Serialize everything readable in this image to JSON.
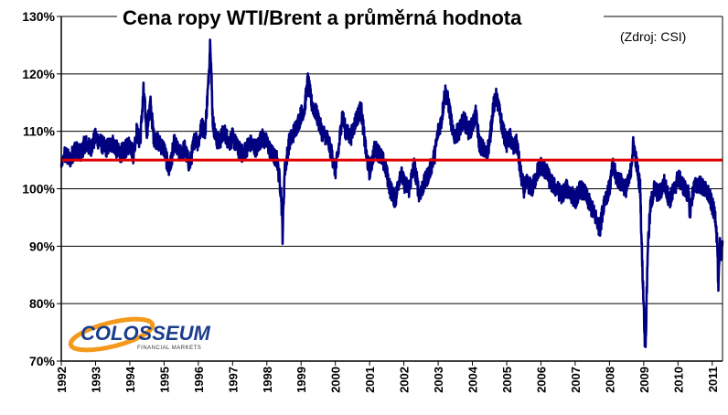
{
  "chart_data": {
    "type": "line",
    "title": "Cena ropy WTI/Brent a průměrná hodnota",
    "source": "(Zdroj: CSI)",
    "xlabel": "",
    "ylabel": "",
    "xlim": [
      1992,
      2011.3
    ],
    "ylim": [
      70,
      130
    ],
    "grid": true,
    "y_ticks": [
      "70%",
      "80%",
      "90%",
      "100%",
      "110%",
      "120%",
      "130%"
    ],
    "x_ticks": [
      "1992",
      "1993",
      "1994",
      "1995",
      "1996",
      "1997",
      "1998",
      "1999",
      "2000",
      "2001",
      "2002",
      "2003",
      "2004",
      "2005",
      "2006",
      "2007",
      "2008",
      "2009",
      "2010",
      "2011"
    ],
    "colors": {
      "series": "#000080",
      "average": "#e00000",
      "grid": "#000000"
    },
    "series": [
      {
        "values": [
          [
            1992.0,
            104
          ],
          [
            1992.1,
            106
          ],
          [
            1992.25,
            105
          ],
          [
            1992.4,
            107
          ],
          [
            1992.55,
            106
          ],
          [
            1992.7,
            108
          ],
          [
            1992.85,
            107
          ],
          [
            1993.0,
            109
          ],
          [
            1993.15,
            108
          ],
          [
            1993.3,
            107
          ],
          [
            1993.5,
            108
          ],
          [
            1993.7,
            106
          ],
          [
            1993.9,
            107
          ],
          [
            1994.0,
            108
          ],
          [
            1994.1,
            106
          ],
          [
            1994.2,
            110
          ],
          [
            1994.3,
            108
          ],
          [
            1994.4,
            117
          ],
          [
            1994.5,
            110
          ],
          [
            1994.6,
            115
          ],
          [
            1994.7,
            109
          ],
          [
            1994.85,
            108
          ],
          [
            1995.0,
            107
          ],
          [
            1995.15,
            103
          ],
          [
            1995.3,
            108
          ],
          [
            1995.45,
            106
          ],
          [
            1995.6,
            107
          ],
          [
            1995.75,
            104
          ],
          [
            1995.9,
            109
          ],
          [
            1996.0,
            108
          ],
          [
            1996.1,
            111
          ],
          [
            1996.2,
            110
          ],
          [
            1996.3,
            119
          ],
          [
            1996.35,
            126
          ],
          [
            1996.42,
            112
          ],
          [
            1996.5,
            109
          ],
          [
            1996.6,
            108
          ],
          [
            1996.75,
            110
          ],
          [
            1996.9,
            108
          ],
          [
            1997.0,
            109
          ],
          [
            1997.15,
            107
          ],
          [
            1997.3,
            106
          ],
          [
            1997.5,
            108
          ],
          [
            1997.7,
            107
          ],
          [
            1997.85,
            109
          ],
          [
            1998.0,
            108
          ],
          [
            1998.15,
            106
          ],
          [
            1998.3,
            105
          ],
          [
            1998.42,
            99
          ],
          [
            1998.46,
            92
          ],
          [
            1998.52,
            103
          ],
          [
            1998.65,
            108
          ],
          [
            1998.8,
            110
          ],
          [
            1998.95,
            112
          ],
          [
            1999.0,
            113
          ],
          [
            1999.1,
            114
          ],
          [
            1999.2,
            119
          ],
          [
            1999.3,
            115
          ],
          [
            1999.45,
            113
          ],
          [
            1999.6,
            110
          ],
          [
            1999.75,
            109
          ],
          [
            1999.9,
            106
          ],
          [
            2000.0,
            103
          ],
          [
            2000.1,
            107
          ],
          [
            2000.2,
            113
          ],
          [
            2000.3,
            110
          ],
          [
            2000.45,
            109
          ],
          [
            2000.6,
            112
          ],
          [
            2000.75,
            114
          ],
          [
            2000.9,
            106
          ],
          [
            2001.0,
            103
          ],
          [
            2001.15,
            107
          ],
          [
            2001.3,
            106
          ],
          [
            2001.45,
            104
          ],
          [
            2001.6,
            100
          ],
          [
            2001.75,
            98
          ],
          [
            2001.9,
            103
          ],
          [
            2002.0,
            101
          ],
          [
            2002.15,
            100
          ],
          [
            2002.3,
            104
          ],
          [
            2002.45,
            99
          ],
          [
            2002.6,
            101
          ],
          [
            2002.75,
            103
          ],
          [
            2002.9,
            106
          ],
          [
            2003.0,
            110
          ],
          [
            2003.1,
            112
          ],
          [
            2003.2,
            117
          ],
          [
            2003.3,
            115
          ],
          [
            2003.45,
            109
          ],
          [
            2003.6,
            110
          ],
          [
            2003.75,
            112
          ],
          [
            2003.9,
            110
          ],
          [
            2004.0,
            111
          ],
          [
            2004.1,
            113
          ],
          [
            2004.2,
            108
          ],
          [
            2004.3,
            107
          ],
          [
            2004.4,
            106
          ],
          [
            2004.5,
            108
          ],
          [
            2004.6,
            114
          ],
          [
            2004.7,
            116
          ],
          [
            2004.8,
            113
          ],
          [
            2004.9,
            110
          ],
          [
            2005.0,
            108
          ],
          [
            2005.1,
            109
          ],
          [
            2005.2,
            107
          ],
          [
            2005.3,
            108
          ],
          [
            2005.4,
            103
          ],
          [
            2005.5,
            100
          ],
          [
            2005.6,
            101
          ],
          [
            2005.75,
            100
          ],
          [
            2005.9,
            103
          ],
          [
            2006.0,
            104
          ],
          [
            2006.15,
            103
          ],
          [
            2006.3,
            101
          ],
          [
            2006.45,
            100
          ],
          [
            2006.6,
            99
          ],
          [
            2006.75,
            100
          ],
          [
            2006.9,
            99
          ],
          [
            2007.0,
            98
          ],
          [
            2007.15,
            100
          ],
          [
            2007.3,
            99
          ],
          [
            2007.45,
            97
          ],
          [
            2007.6,
            95
          ],
          [
            2007.72,
            93
          ],
          [
            2007.85,
            98
          ],
          [
            2008.0,
            100
          ],
          [
            2008.1,
            104
          ],
          [
            2008.2,
            102
          ],
          [
            2008.35,
            101
          ],
          [
            2008.5,
            100
          ],
          [
            2008.6,
            102
          ],
          [
            2008.7,
            108
          ],
          [
            2008.8,
            104
          ],
          [
            2008.9,
            100
          ],
          [
            2008.95,
            88
          ],
          [
            2009.0,
            80
          ],
          [
            2009.03,
            74
          ],
          [
            2009.06,
            74
          ],
          [
            2009.12,
            90
          ],
          [
            2009.2,
            97
          ],
          [
            2009.3,
            100
          ],
          [
            2009.45,
            99
          ],
          [
            2009.6,
            101
          ],
          [
            2009.75,
            98
          ],
          [
            2009.9,
            100
          ],
          [
            2010.0,
            102
          ],
          [
            2010.1,
            101
          ],
          [
            2010.2,
            100
          ],
          [
            2010.3,
            99
          ],
          [
            2010.35,
            96
          ],
          [
            2010.45,
            100
          ],
          [
            2010.6,
            101
          ],
          [
            2010.75,
            100
          ],
          [
            2010.9,
            99
          ],
          [
            2011.0,
            97
          ],
          [
            2011.1,
            95
          ],
          [
            2011.15,
            90
          ],
          [
            2011.18,
            82
          ],
          [
            2011.22,
            90
          ],
          [
            2011.28,
            89
          ],
          [
            2011.3,
            91
          ]
        ]
      }
    ],
    "average": 105,
    "logo": {
      "name": "COLOSSEUM",
      "tagline": "FINANCIAL MARKETS"
    }
  }
}
